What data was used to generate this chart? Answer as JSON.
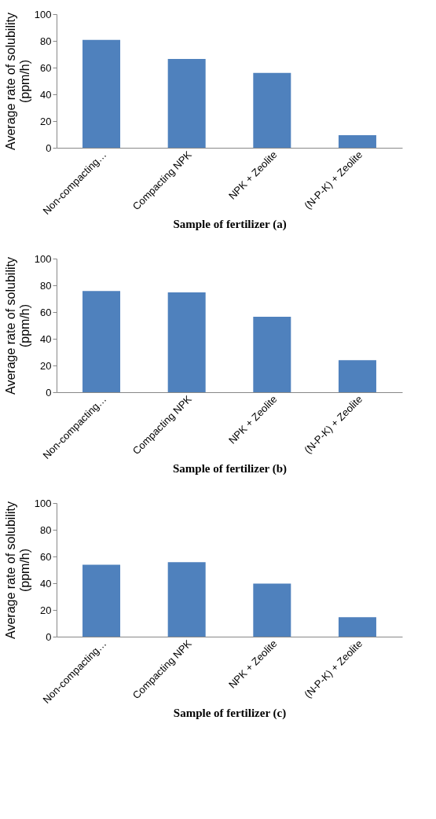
{
  "chart_data": [
    {
      "type": "bar",
      "categories": [
        "Non-compacting…",
        "Compacting NPK",
        "NPK + Zeolite",
        "(N-P-K) + Zeolite"
      ],
      "values": [
        80.7,
        66.5,
        56,
        9.4
      ],
      "color": "#4f81bd",
      "xlabel": "Sample of fertilizer (a)",
      "ylabel": "Average rate of solubility\n(ppm/h)",
      "ylim": [
        0,
        100
      ],
      "yticks": [
        0,
        20,
        40,
        60,
        80,
        100
      ],
      "grid": false
    },
    {
      "type": "bar",
      "categories": [
        "Non-compacting…",
        "Compacting NPK",
        "NPK + Zeolite",
        "(N-P-K) + Zeolite"
      ],
      "values": [
        75.7,
        74.7,
        56.5,
        24
      ],
      "color": "#4f81bd",
      "xlabel": "Sample of fertilizer (b)",
      "ylabel": "Average rate of solubility\n(ppm/h)",
      "ylim": [
        0,
        100
      ],
      "yticks": [
        0,
        20,
        40,
        60,
        80,
        100
      ],
      "grid": false
    },
    {
      "type": "bar",
      "categories": [
        "Non-compacting…",
        "Compacting NPK",
        "NPK + Zeolite",
        "(N-P-K) + Zeolite"
      ],
      "values": [
        53.8,
        55.8,
        39.7,
        14.6
      ],
      "color": "#4f81bd",
      "xlabel": "Sample of fertilizer (c)",
      "ylabel": "Average rate of solubility\n(ppm/h)",
      "ylim": [
        0,
        100
      ],
      "yticks": [
        0,
        20,
        40,
        60,
        80,
        100
      ],
      "grid": false
    }
  ]
}
